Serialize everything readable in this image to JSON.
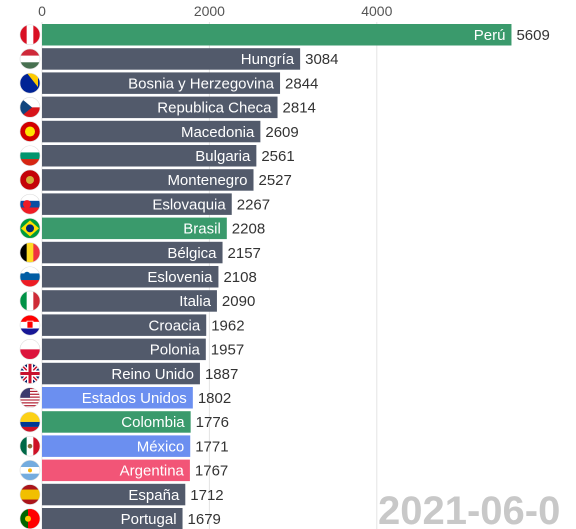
{
  "chart_data": {
    "type": "bar",
    "orientation": "horizontal",
    "xlim": [
      0,
      5609
    ],
    "ticks": [
      0,
      2000,
      4000
    ],
    "grid": true,
    "date": "2021-06-0",
    "categories": [
      "Perú",
      "Hungría",
      "Bosnia y Herzegovina",
      "Republica Checa",
      "Macedonia",
      "Bulgaria",
      "Montenegro",
      "Eslovaquia",
      "Brasil",
      "Bélgica",
      "Eslovenia",
      "Italia",
      "Croacia",
      "Polonia",
      "Reino Unido",
      "Estados Unidos",
      "Colombia",
      "México",
      "Argentina",
      "España",
      "Portugal"
    ],
    "values": [
      5609,
      3084,
      2844,
      2814,
      2609,
      2561,
      2527,
      2267,
      2208,
      2157,
      2108,
      2090,
      1962,
      1957,
      1887,
      1802,
      1776,
      1771,
      1767,
      1712,
      1679
    ],
    "value_labels": [
      "5609",
      "3084",
      "2844",
      "2814",
      "2609",
      "2561",
      "2527",
      "2267",
      "2208",
      "2157",
      "2108",
      "2090",
      "1962",
      "1957",
      "1887",
      "1802",
      "1776",
      "1771",
      "1767",
      "1712",
      "1679"
    ],
    "bar_colors": [
      "#3a9a6c",
      "#525a6b",
      "#525a6b",
      "#525a6b",
      "#525a6b",
      "#525a6b",
      "#525a6b",
      "#525a6b",
      "#3a9a6c",
      "#525a6b",
      "#525a6b",
      "#525a6b",
      "#525a6b",
      "#525a6b",
      "#525a6b",
      "#6b8ff0",
      "#3a9a6c",
      "#6b8ff0",
      "#f25577",
      "#525a6b",
      "#525a6b"
    ],
    "flags": [
      "peru-flag-icon",
      "hungary-flag-icon",
      "bosnia-flag-icon",
      "czech-flag-icon",
      "macedonia-flag-icon",
      "bulgaria-flag-icon",
      "montenegro-flag-icon",
      "slovakia-flag-icon",
      "brazil-flag-icon",
      "belgium-flag-icon",
      "slovenia-flag-icon",
      "italy-flag-icon",
      "croatia-flag-icon",
      "poland-flag-icon",
      "uk-flag-icon",
      "usa-flag-icon",
      "colombia-flag-icon",
      "mexico-flag-icon",
      "argentina-flag-icon",
      "spain-flag-icon",
      "portugal-flag-icon"
    ]
  }
}
